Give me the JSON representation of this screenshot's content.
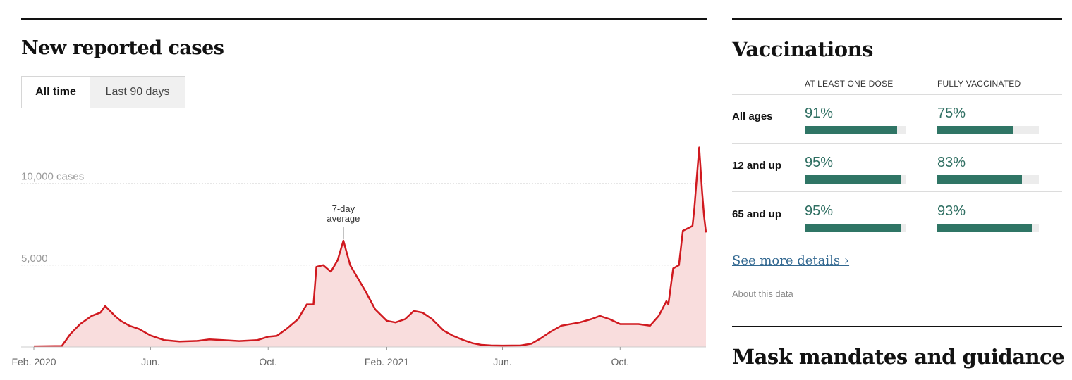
{
  "cases": {
    "title": "New reported cases",
    "tabs": [
      {
        "label": "All time",
        "active": true
      },
      {
        "label": "Last 90 days",
        "active": false
      }
    ]
  },
  "chart_data": {
    "type": "area",
    "title": "",
    "xlabel": "",
    "ylabel": "",
    "y_ticks": [
      {
        "value": 10000,
        "label": "10,000 cases"
      },
      {
        "value": 5000,
        "label": "5,000"
      }
    ],
    "x_ticks": [
      {
        "date": "2020-02-01",
        "label": "Feb. 2020"
      },
      {
        "date": "2020-06-01",
        "label": "Jun."
      },
      {
        "date": "2020-10-01",
        "label": "Oct."
      },
      {
        "date": "2021-02-01",
        "label": "Feb. 2021"
      },
      {
        "date": "2021-06-01",
        "label": "Jun."
      },
      {
        "date": "2021-10-01",
        "label": "Oct."
      }
    ],
    "xlim": [
      "2020-02-01",
      "2021-12-29"
    ],
    "ylim": [
      0,
      13300
    ],
    "grid": true,
    "annotation": {
      "line1": "7-day",
      "line2": "average",
      "date": "2020-12-18",
      "value": 6500
    },
    "line_color": "#d0191f",
    "fill_color": "#f9dddd",
    "series": [
      {
        "x": [
          "2020-02-01",
          "2020-03-01",
          "2020-03-10",
          "2020-03-20",
          "2020-04-01",
          "2020-04-10",
          "2020-04-15",
          "2020-04-25",
          "2020-05-01",
          "2020-05-10",
          "2020-05-20",
          "2020-06-01",
          "2020-06-15",
          "2020-07-01",
          "2020-07-20",
          "2020-08-01",
          "2020-08-15",
          "2020-09-01",
          "2020-09-20",
          "2020-10-01",
          "2020-10-10",
          "2020-10-20",
          "2020-11-01",
          "2020-11-10",
          "2020-11-17",
          "2020-11-20",
          "2020-11-27",
          "2020-12-05",
          "2020-12-12",
          "2020-12-18",
          "2020-12-25",
          "2021-01-01",
          "2021-01-10",
          "2021-01-20",
          "2021-02-01",
          "2021-02-10",
          "2021-02-20",
          "2021-03-01",
          "2021-03-10",
          "2021-03-20",
          "2021-04-01",
          "2021-04-10",
          "2021-04-20",
          "2021-05-01",
          "2021-05-10",
          "2021-05-20",
          "2021-06-01",
          "2021-06-20",
          "2021-07-01",
          "2021-07-10",
          "2021-07-20",
          "2021-08-01",
          "2021-08-20",
          "2021-09-01",
          "2021-09-10",
          "2021-09-20",
          "2021-10-01",
          "2021-10-20",
          "2021-11-01",
          "2021-11-10",
          "2021-11-18",
          "2021-11-20",
          "2021-11-25",
          "2021-12-01",
          "2021-12-05",
          "2021-12-15",
          "2021-12-17",
          "2021-12-19",
          "2021-12-22",
          "2021-12-25",
          "2021-12-27",
          "2021-12-29"
        ],
        "y": [
          40,
          60,
          800,
          1400,
          1900,
          2100,
          2500,
          1900,
          1600,
          1300,
          1100,
          700,
          420,
          330,
          370,
          460,
          420,
          360,
          420,
          630,
          680,
          1100,
          1700,
          2600,
          2600,
          4900,
          5000,
          4600,
          5300,
          6500,
          5000,
          4300,
          3400,
          2300,
          1600,
          1500,
          1700,
          2200,
          2100,
          1700,
          1000,
          700,
          450,
          230,
          130,
          90,
          80,
          90,
          200,
          500,
          900,
          1300,
          1500,
          1700,
          1900,
          1700,
          1400,
          1400,
          1300,
          1900,
          2800,
          2600,
          4800,
          5000,
          7100,
          7400,
          8500,
          10000,
          12200,
          9500,
          8000,
          7000
        ]
      }
    ]
  },
  "vaccinations": {
    "title": "Vaccinations",
    "col_headers": [
      "AT LEAST ONE DOSE",
      "FULLY VACCINATED"
    ],
    "rows": [
      {
        "label": "All ages",
        "dose1_text": "91%",
        "dose1": 0.91,
        "full_text": "75%",
        "full": 0.75
      },
      {
        "label": "12 and up",
        "dose1_text": "95%",
        "dose1": 0.95,
        "full_text": "83%",
        "full": 0.83
      },
      {
        "label": "65 and up",
        "dose1_text": "95%",
        "dose1": 0.95,
        "full_text": "93%",
        "full": 0.93
      }
    ],
    "see_more": "See more details ›",
    "about": "About this data"
  },
  "mask": {
    "title": "Mask mandates and guidance"
  }
}
